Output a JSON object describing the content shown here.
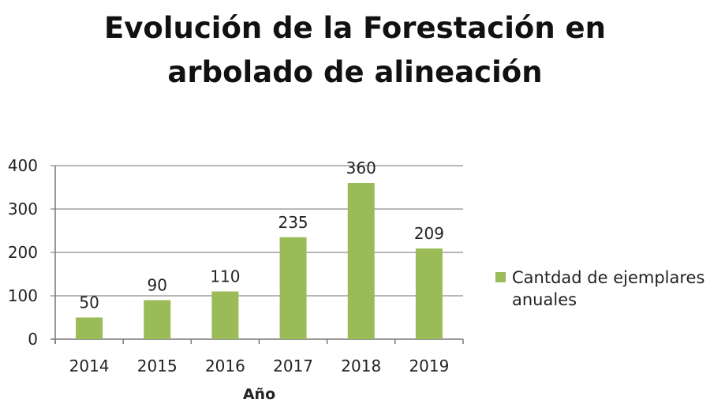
{
  "chart_data": {
    "type": "bar",
    "title_line1": "Evolución de la Forestación en",
    "title_line2": "arbolado de alineación",
    "categories": [
      "2014",
      "2015",
      "2016",
      "2017",
      "2018",
      "2019"
    ],
    "series": [
      {
        "name": "Cantdad de ejemplares anuales",
        "name_line1": "Cantdad de ejemplares",
        "name_line2": "anuales",
        "values": [
          50,
          90,
          110,
          235,
          360,
          209
        ],
        "color": "#9bbb59"
      }
    ],
    "xlabel": "Año",
    "ylabel": "",
    "ylim": [
      0,
      400
    ],
    "yticks": [
      0,
      100,
      200,
      300,
      400
    ],
    "grid": true,
    "legend": "right"
  }
}
